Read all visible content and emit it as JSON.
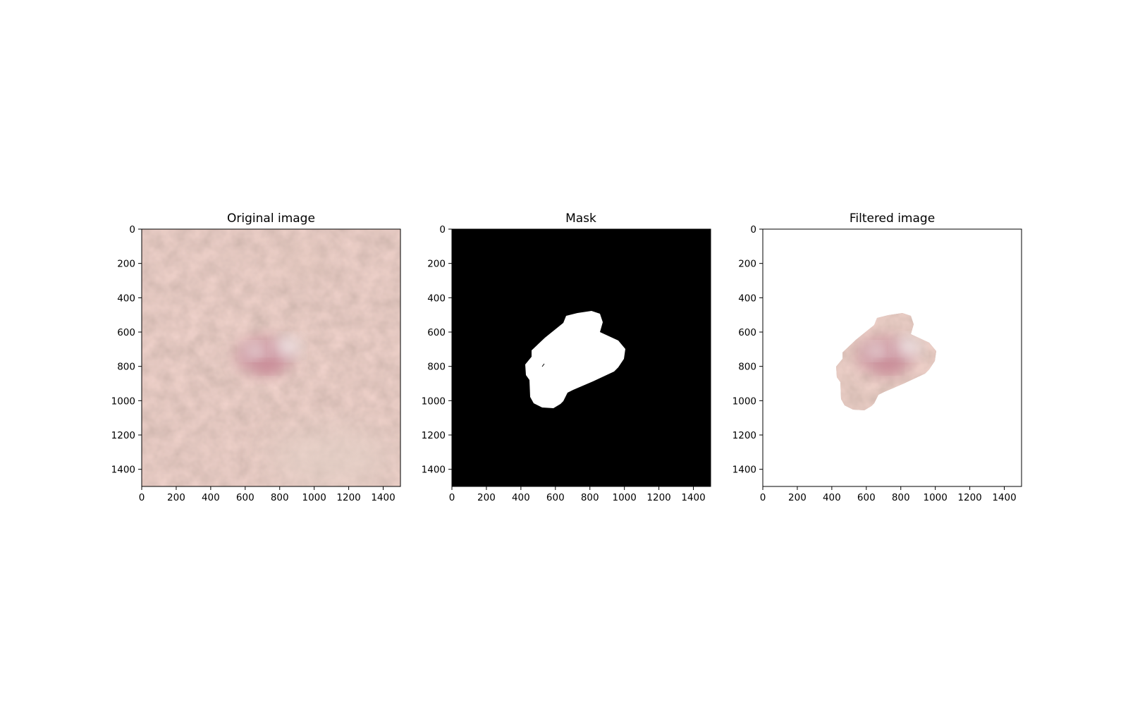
{
  "figure": {
    "panels": [
      {
        "title": "Original image"
      },
      {
        "title": "Mask"
      },
      {
        "title": "Filtered image"
      }
    ],
    "x_ticks": [
      "0",
      "200",
      "400",
      "600",
      "800",
      "1000",
      "1200",
      "1400"
    ],
    "y_ticks": [
      "0",
      "200",
      "400",
      "600",
      "800",
      "1000",
      "1200",
      "1400"
    ],
    "image_extent": [
      0,
      1500
    ],
    "colors": {
      "skin_base": "#c8a596",
      "lesion_pink": "#c98f9a",
      "lesion_white": "#e6dedd",
      "mask_background": "#000000",
      "mask_foreground": "#ffffff",
      "filtered_background": "#ffffff"
    }
  }
}
